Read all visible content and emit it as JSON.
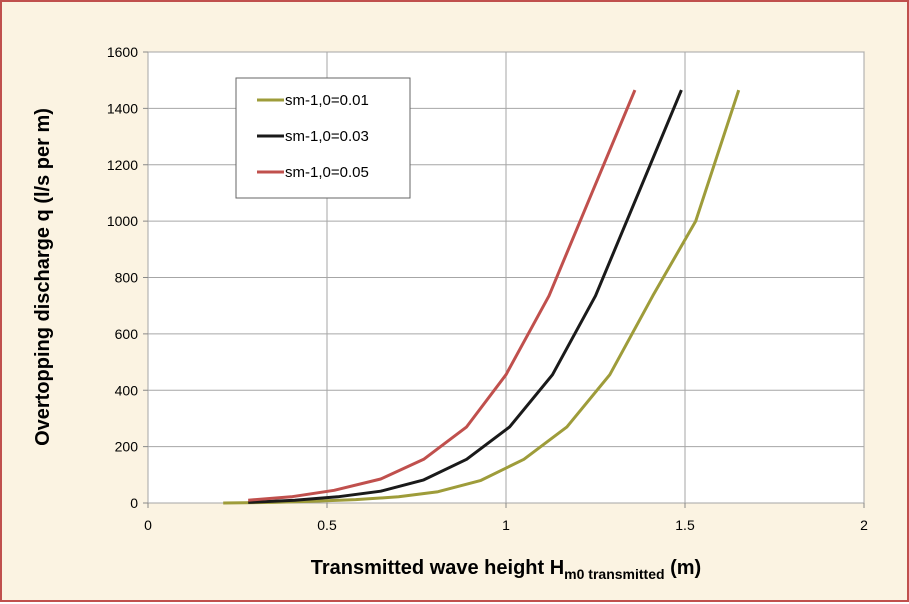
{
  "chart_data": {
    "type": "line",
    "xlabel": "Transmitted wave height H",
    "xlabel_subscript": "m0 transmitted",
    "xlabel_unit": " (m)",
    "ylabel": "Overtopping discharge q (l/s per m)",
    "xlim": [
      0,
      2
    ],
    "ylim": [
      0,
      1600
    ],
    "xticks": [
      "0",
      "0.5",
      "1",
      "1.5",
      "2"
    ],
    "yticks": [
      "0",
      "200",
      "400",
      "600",
      "800",
      "1000",
      "1200",
      "1400",
      "1600"
    ],
    "grid": true,
    "legend_position": "top-left",
    "series": [
      {
        "name": "sm-1,0=0.01",
        "color": "#9e9c3a",
        "x": [
          0.21,
          0.35,
          0.46,
          0.58,
          0.7,
          0.81,
          0.93,
          1.05,
          1.17,
          1.29,
          1.41,
          1.53,
          1.65
        ],
        "y": [
          0,
          2,
          6,
          12,
          22,
          40,
          80,
          155,
          270,
          455,
          735,
          1000,
          1465
        ]
      },
      {
        "name": "sm-1,0=0.03",
        "color": "#1a1a1a",
        "x": [
          0.28,
          0.41,
          0.53,
          0.65,
          0.77,
          0.89,
          1.01,
          1.13,
          1.25,
          1.37,
          1.49
        ],
        "y": [
          2,
          10,
          22,
          42,
          82,
          155,
          270,
          455,
          735,
          1100,
          1465
        ]
      },
      {
        "name": "sm-1,0=0.05",
        "color": "#c0504d",
        "x": [
          0.28,
          0.4,
          0.52,
          0.65,
          0.77,
          0.89,
          1.0,
          1.12,
          1.24,
          1.36
        ],
        "y": [
          10,
          22,
          45,
          85,
          155,
          270,
          455,
          735,
          1100,
          1465
        ]
      }
    ]
  }
}
